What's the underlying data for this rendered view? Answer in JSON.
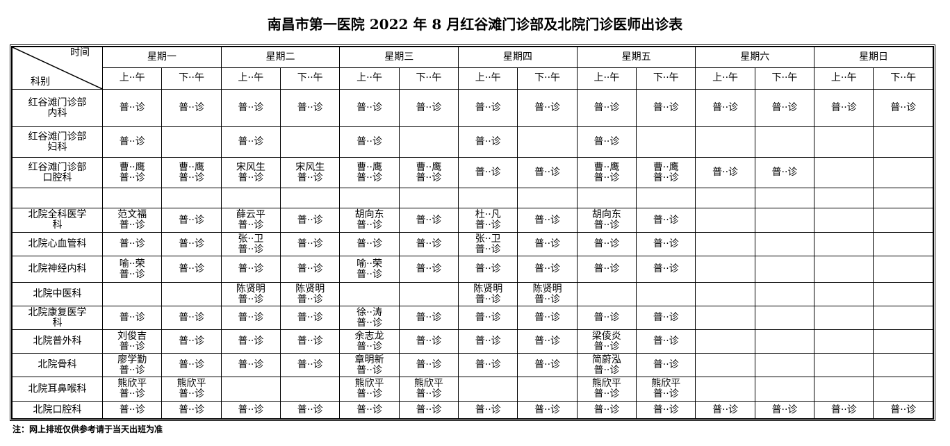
{
  "title": "南昌市第一医院 2022 年 8 月红谷滩门诊部及北院门诊医师出诊表",
  "header": {
    "time_label": "时间",
    "dept_label": "科别",
    "days": [
      "星期一",
      "星期二",
      "星期三",
      "星期四",
      "星期五",
      "星期六",
      "星期日"
    ],
    "am": "上··午",
    "pm": "下··午"
  },
  "rows": [
    {
      "dept": "红谷滩门诊部\n内科",
      "cells": [
        "普··诊",
        "普··诊",
        "普··诊",
        "普··诊",
        "普··诊",
        "普··诊",
        "普··诊",
        "普··诊",
        "普··诊",
        "普··诊",
        "普··诊",
        "普··诊",
        "普··诊",
        "普··诊"
      ]
    },
    {
      "dept": "红谷滩门诊部\n妇科",
      "cells": [
        "普··诊",
        "",
        "普··诊",
        "",
        "普··诊",
        "",
        "普··诊",
        "",
        "普··诊",
        "",
        "",
        "",
        "",
        ""
      ]
    },
    {
      "dept": "红谷滩门诊部\n口腔科",
      "cells": [
        "曹··鹰\n普··诊",
        "曹··鹰\n普··诊",
        "宋风生\n普··诊",
        "宋风生\n普··诊",
        "曹··鹰\n普··诊",
        "曹··鹰\n普··诊",
        "普··诊",
        "普··诊",
        "曹··鹰\n普··诊",
        "曹··鹰\n普··诊",
        "普··诊",
        "普··诊",
        "",
        ""
      ]
    },
    {
      "dept": "",
      "cells": [
        "",
        "",
        "",
        "",
        "",
        "",
        "",
        "",
        "",
        "",
        "",
        "",
        "",
        ""
      ]
    },
    {
      "dept": "北院全科医学\n科",
      "cells": [
        "范文福\n普··诊",
        "普··诊",
        "薛云平\n普··诊",
        "普··诊",
        "胡向东\n普··诊",
        "普··诊",
        "杜··凡\n普··诊",
        "普··诊",
        "胡向东\n普··诊",
        "普··诊",
        "",
        "",
        "",
        ""
      ]
    },
    {
      "dept": "北院心血管科",
      "cells": [
        "普··诊",
        "普··诊",
        "张··卫\n普··诊",
        "普··诊",
        "普··诊",
        "普··诊",
        "张··卫\n普··诊",
        "普··诊",
        "普··诊",
        "普··诊",
        "",
        "",
        "",
        ""
      ]
    },
    {
      "dept": "北院神经内科",
      "cells": [
        "喻··荣\n普··诊",
        "普··诊",
        "普··诊",
        "普··诊",
        "喻··荣\n普··诊",
        "普··诊",
        "普··诊",
        "普··诊",
        "普··诊",
        "普··诊",
        "",
        "",
        "",
        ""
      ]
    },
    {
      "dept": "北院中医科",
      "cells": [
        "",
        "",
        "陈贤明\n普··诊",
        "陈贤明\n普··诊",
        "",
        "",
        "陈贤明\n普··诊",
        "陈贤明\n普··诊",
        "",
        "",
        "",
        "",
        "",
        ""
      ]
    },
    {
      "dept": "北院康复医学\n科",
      "cells": [
        "普··诊",
        "普··诊",
        "普··诊",
        "普··诊",
        "徐··涛\n普··诊",
        "普··诊",
        "普··诊",
        "普··诊",
        "普··诊",
        "普··诊",
        "",
        "",
        "",
        ""
      ]
    },
    {
      "dept": "北院普外科",
      "cells": [
        "刘俊吉\n普··诊",
        "普··诊",
        "普··诊",
        "普··诊",
        "余志龙\n普··诊",
        "普··诊",
        "普··诊",
        "普··诊",
        "梁倰炎\n普··诊",
        "普··诊",
        "",
        "",
        "",
        ""
      ]
    },
    {
      "dept": "北院骨科",
      "cells": [
        "廖学勤\n普··诊",
        "普··诊",
        "普··诊",
        "普··诊",
        "章明新\n普··诊",
        "普··诊",
        "普··诊",
        "普··诊",
        "简蔚泓\n普··诊",
        "普··诊",
        "",
        "",
        "",
        ""
      ]
    },
    {
      "dept": "北院耳鼻喉科",
      "cells": [
        "熊欣平\n普··诊",
        "熊欣平\n普··诊",
        "",
        "",
        "熊欣平\n普··诊",
        "熊欣平\n普··诊",
        "",
        "",
        "熊欣平\n普··诊",
        "熊欣平\n普··诊",
        "",
        "",
        "",
        ""
      ]
    },
    {
      "dept": "北院口腔科",
      "cells": [
        "普··诊",
        "普··诊",
        "普··诊",
        "普··诊",
        "普··诊",
        "普··诊",
        "普··诊",
        "普··诊",
        "普··诊",
        "普··诊",
        "普··诊",
        "普··诊",
        "普··诊",
        "普··诊"
      ]
    }
  ],
  "note": "注：网上排班仅供参考请于当天出班为准"
}
